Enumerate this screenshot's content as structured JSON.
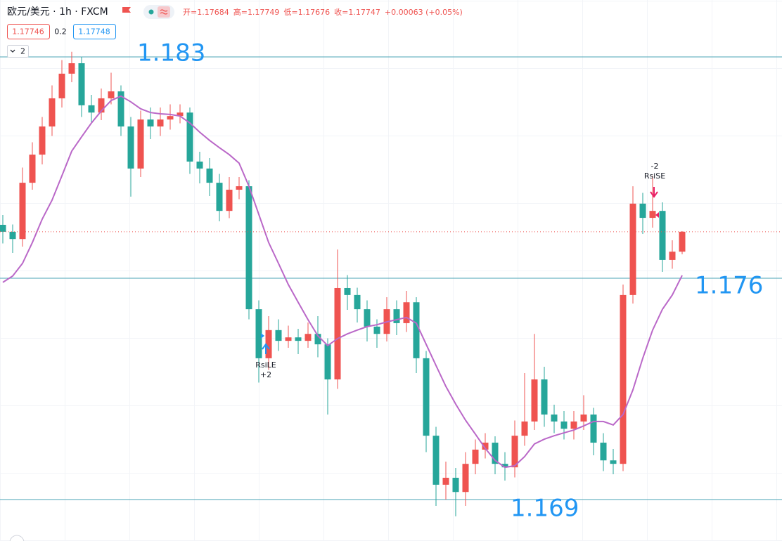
{
  "chart_data": {
    "type": "candlestick",
    "symbol": "欧元/美元 · 1h · FXCM",
    "ohlc_legend": [
      {
        "label": "开=",
        "value": 1.17684
      },
      {
        "label": "高=",
        "value": 1.17749
      },
      {
        "label": "低=",
        "value": 1.17676
      },
      {
        "label": "收=",
        "value": 1.17747
      }
    ],
    "change": "+0.00063 (+0.05%)",
    "bid": 1.17746,
    "spread": 0.2,
    "ask": 1.17748,
    "indicators_count": 2,
    "up_color": "#ef5350",
    "down_color": "#26a69a",
    "categories": [
      null,
      null,
      null,
      null,
      null,
      null,
      null,
      null,
      null,
      null,
      null,
      null,
      null,
      null,
      null,
      null,
      null,
      null,
      null,
      null,
      null,
      null,
      null,
      null,
      null,
      null,
      null,
      null,
      null,
      null,
      null,
      null,
      null,
      null,
      null,
      null,
      null,
      null,
      null,
      null,
      null,
      null,
      null,
      null,
      null,
      null,
      null,
      null,
      null,
      null,
      null,
      null,
      null,
      null,
      null,
      null,
      null,
      null,
      null,
      null,
      null,
      null,
      null,
      null,
      null,
      null,
      null,
      null,
      null,
      null
    ],
    "candles": {
      "open": [
        1.17769,
        1.17747,
        1.17724,
        1.17902,
        1.17991,
        1.1808,
        1.18169,
        1.18247,
        1.1828,
        1.18147,
        1.18124,
        1.18169,
        1.18191,
        1.1808,
        1.17947,
        1.18102,
        1.1808,
        1.18102,
        1.18113,
        1.18124,
        1.17969,
        1.17947,
        1.17902,
        1.17813,
        1.1788,
        1.17891,
        1.17502,
        1.17347,
        1.17436,
        1.17402,
        1.17413,
        1.17402,
        1.17424,
        1.17391,
        1.1728,
        1.17569,
        1.17547,
        1.17502,
        1.17447,
        1.17424,
        1.17502,
        1.17458,
        1.17524,
        1.17347,
        1.17102,
        1.16947,
        1.16969,
        1.16924,
        1.17013,
        1.17058,
        1.1708,
        1.17013,
        1.17002,
        1.17102,
        1.17147,
        1.1728,
        1.17169,
        1.17147,
        1.17124,
        1.17147,
        1.17169,
        1.1708,
        1.17024,
        1.17013,
        1.17547,
        1.17836,
        1.17791,
        1.17813,
        1.17658,
        1.17684
      ],
      "high": [
        1.178,
        1.1777,
        1.1795,
        1.1803,
        1.1811,
        1.1821,
        1.1829,
        1.18316,
        1.183,
        1.1818,
        1.182,
        1.1825,
        1.1821,
        1.1811,
        1.1813,
        1.1814,
        1.1814,
        1.1815,
        1.1815,
        1.1814,
        1.18,
        1.1798,
        1.1793,
        1.1792,
        1.1792,
        1.1791,
        1.1753,
        1.1748,
        1.1747,
        1.1745,
        1.1744,
        1.1746,
        1.1748,
        1.1741,
        1.17691,
        1.1761,
        1.1757,
        1.1753,
        1.1747,
        1.1754,
        1.1753,
        1.1756,
        1.1754,
        1.1737,
        1.1713,
        1.1702,
        1.17,
        1.1705,
        1.1709,
        1.1711,
        1.171,
        1.1705,
        1.1715,
        1.173,
        1.17424,
        1.1732,
        1.172,
        1.1718,
        1.1718,
        1.1723,
        1.1719,
        1.1711,
        1.1706,
        1.1758,
        1.17891,
        1.1787,
        1.17924,
        1.1784,
        1.1772,
        1.17749
      ],
      "low": [
        1.1771,
        1.1768,
        1.177,
        1.1788,
        1.1796,
        1.1805,
        1.1814,
        1.1822,
        1.1811,
        1.1809,
        1.181,
        1.1815,
        1.1805,
        1.17858,
        1.1792,
        1.1804,
        1.1805,
        1.1807,
        1.1809,
        1.1793,
        1.179,
        1.1786,
        1.1778,
        1.1779,
        1.1785,
        1.1747,
        1.1727,
        1.1731,
        1.1737,
        1.1738,
        1.1736,
        1.1738,
        1.1735,
        1.17169,
        1.1725,
        1.175,
        1.1746,
        1.174,
        1.1738,
        1.174,
        1.1742,
        1.1743,
        1.173,
        1.1705,
        1.1688,
        1.169,
        1.16847,
        1.1688,
        1.1698,
        1.1703,
        1.1698,
        1.1696,
        1.1697,
        1.1707,
        1.1712,
        1.1713,
        1.1711,
        1.1709,
        1.1709,
        1.1712,
        1.1704,
        1.1699,
        1.1698,
        1.1699,
        1.1752,
        1.1774,
        1.1776,
        1.1762,
        1.1763,
        1.17676
      ],
      "close": [
        1.17747,
        1.17724,
        1.17902,
        1.17991,
        1.1808,
        1.18169,
        1.18247,
        1.1828,
        1.18147,
        1.18124,
        1.18169,
        1.18191,
        1.1808,
        1.17947,
        1.18102,
        1.1808,
        1.18102,
        1.18113,
        1.18124,
        1.17969,
        1.17947,
        1.17902,
        1.17813,
        1.1788,
        1.17891,
        1.17502,
        1.17347,
        1.17436,
        1.17402,
        1.17413,
        1.17402,
        1.17424,
        1.17391,
        1.1728,
        1.17569,
        1.17547,
        1.17502,
        1.17447,
        1.17424,
        1.17502,
        1.17458,
        1.17524,
        1.17347,
        1.17102,
        1.16947,
        1.16969,
        1.16924,
        1.17013,
        1.17058,
        1.1708,
        1.17013,
        1.17002,
        1.17102,
        1.17147,
        1.1728,
        1.17169,
        1.17147,
        1.17124,
        1.17147,
        1.17169,
        1.1708,
        1.17024,
        1.17013,
        1.17547,
        1.17836,
        1.17791,
        1.17813,
        1.17658,
        1.17684,
        1.17747
      ]
    },
    "series": [
      {
        "type": "line",
        "color": "#ba68c8",
        "values": [
          1.17587,
          1.17607,
          1.17647,
          1.17713,
          1.17787,
          1.17847,
          1.17924,
          1.18002,
          1.18047,
          1.18091,
          1.18129,
          1.18162,
          1.18176,
          1.18158,
          1.18136,
          1.18124,
          1.1812,
          1.18118,
          1.18113,
          1.18091,
          1.18062,
          1.18036,
          1.18013,
          1.17991,
          1.17964,
          1.17891,
          1.17802,
          1.17713,
          1.17647,
          1.1758,
          1.17524,
          1.17469,
          1.17418,
          1.17387,
          1.17409,
          1.17424,
          1.17436,
          1.17447,
          1.17453,
          1.17462,
          1.17469,
          1.17476,
          1.17458,
          1.17391,
          1.17324,
          1.17258,
          1.17202,
          1.17151,
          1.17107,
          1.17062,
          1.17024,
          1.17002,
          1.17007,
          1.17036,
          1.17076,
          1.17091,
          1.17102,
          1.17111,
          1.1712,
          1.17133,
          1.17147,
          1.17147,
          1.17136,
          1.17169,
          1.17247,
          1.17347,
          1.17436,
          1.17502,
          1.17547,
          1.17609
        ]
      }
    ],
    "levels": [
      1.183,
      1.176,
      1.169
    ],
    "level_color": "#4aa3b5",
    "level_label_color": "#2196f3",
    "signals": {
      "long": {
        "name": "RsiLE",
        "qty": "+2"
      },
      "short": {
        "qty": "-2",
        "name": "RsiSE"
      }
    },
    "ylim": [
      1.16769,
      1.1848
    ]
  }
}
